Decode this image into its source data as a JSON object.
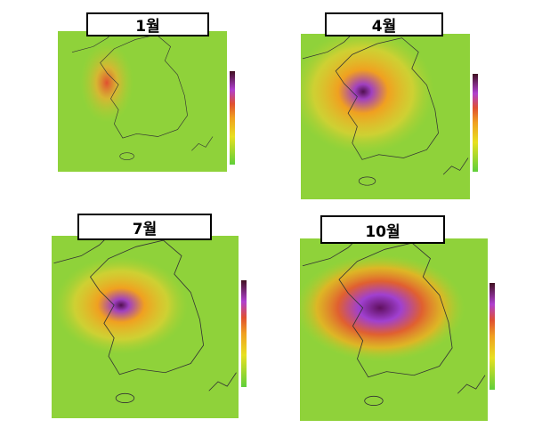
{
  "panels": [
    {
      "label": "1월"
    },
    {
      "label": "4월"
    },
    {
      "label": "7월"
    },
    {
      "label": "10월"
    }
  ]
}
